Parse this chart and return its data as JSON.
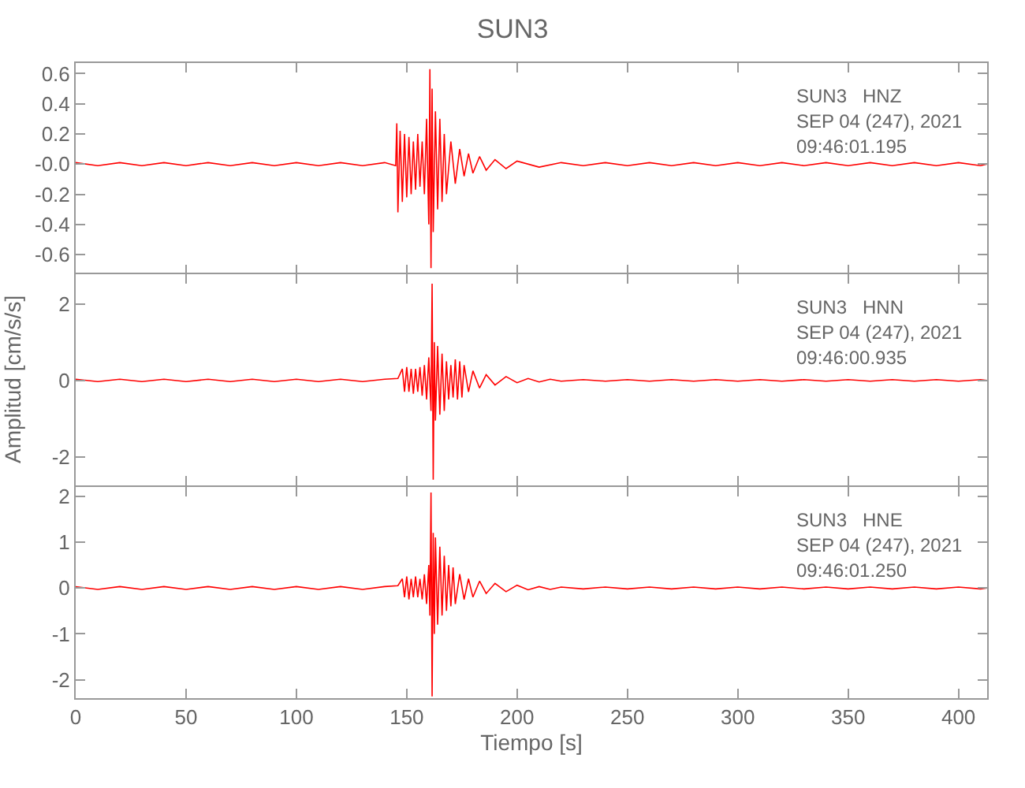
{
  "chart_data": [
    {
      "type": "line",
      "title": "SUN3",
      "color": "#ff0000",
      "annotations": [
        "SUN3   HNZ",
        "SEP 04 (247), 2021",
        "09:46:01.195"
      ],
      "xlim": [
        0,
        413
      ],
      "xticks": [
        0,
        50,
        100,
        150,
        200,
        250,
        300,
        350,
        400
      ],
      "ylim": [
        -0.73,
        0.67
      ],
      "yticks": [
        -0.6,
        -0.4,
        -0.2,
        {
          "value": 0,
          "label": "-0.0"
        },
        0.2,
        0.4,
        0.6
      ],
      "tick_labels": "y",
      "x": [
        0,
        10,
        20,
        30,
        40,
        50,
        60,
        70,
        80,
        90,
        100,
        110,
        120,
        130,
        140,
        145,
        145.5,
        146,
        147,
        148,
        149,
        150,
        151,
        152,
        153,
        154,
        155,
        156,
        157,
        158,
        159,
        160,
        160.5,
        161,
        161.5,
        162,
        163,
        164,
        165,
        166,
        167,
        168,
        170,
        172,
        174,
        176,
        178,
        180,
        183,
        186,
        190,
        195,
        200,
        210,
        220,
        230,
        240,
        250,
        260,
        270,
        280,
        290,
        300,
        310,
        320,
        330,
        340,
        350,
        360,
        370,
        380,
        390,
        400,
        410,
        413
      ],
      "values": [
        0.01,
        -0.01,
        0.01,
        -0.01,
        0.01,
        -0.01,
        0.01,
        -0.01,
        0.01,
        -0.01,
        0.01,
        -0.01,
        0.01,
        -0.01,
        0.01,
        -0.01,
        0.27,
        -0.32,
        0.22,
        -0.25,
        0.2,
        -0.22,
        0.18,
        -0.2,
        0.15,
        -0.17,
        0.2,
        -0.15,
        0.15,
        -0.2,
        0.3,
        -0.4,
        0.63,
        -0.69,
        0.5,
        -0.45,
        0.35,
        -0.3,
        0.3,
        -0.25,
        0.2,
        -0.2,
        0.15,
        -0.13,
        0.1,
        -0.08,
        0.07,
        -0.06,
        0.05,
        -0.04,
        0.03,
        -0.03,
        0.02,
        -0.02,
        0.01,
        -0.01,
        0.01,
        -0.01,
        0.01,
        -0.01,
        0.01,
        -0.01,
        0.01,
        -0.01,
        0.01,
        -0.01,
        0.01,
        -0.01,
        0.01,
        -0.01,
        0.01,
        -0.01,
        0.01,
        -0.01,
        0
      ]
    },
    {
      "type": "line",
      "ylabel": "Amplitud [cm/s/s]",
      "color": "#ff0000",
      "annotations": [
        "SUN3   HNN",
        "SEP 04 (247), 2021",
        "09:46:00.935"
      ],
      "xlim": [
        0,
        413
      ],
      "xticks": [
        0,
        50,
        100,
        150,
        200,
        250,
        300,
        350,
        400
      ],
      "ylim": [
        -2.75,
        2.78
      ],
      "yticks": [
        -2,
        0,
        2
      ],
      "tick_labels": "y",
      "x": [
        0,
        10,
        20,
        30,
        40,
        50,
        60,
        70,
        80,
        90,
        100,
        110,
        120,
        130,
        140,
        146,
        148,
        149,
        150,
        151,
        152,
        153,
        154,
        155,
        156,
        157,
        158,
        159,
        160,
        161,
        161.5,
        162,
        162.5,
        163,
        164,
        165,
        166,
        167,
        168,
        169,
        170,
        171,
        172,
        173,
        174,
        175,
        176,
        178,
        180,
        183,
        186,
        190,
        195,
        200,
        205,
        210,
        215,
        220,
        230,
        240,
        250,
        260,
        270,
        280,
        290,
        300,
        310,
        320,
        330,
        340,
        350,
        360,
        370,
        380,
        390,
        400,
        410,
        413
      ],
      "values": [
        0.03,
        -0.03,
        0.03,
        -0.03,
        0.03,
        -0.03,
        0.03,
        -0.03,
        0.03,
        -0.03,
        0.03,
        -0.03,
        0.03,
        -0.03,
        0.03,
        0.05,
        0.3,
        -0.3,
        0.35,
        -0.3,
        0.3,
        -0.35,
        0.3,
        -0.3,
        0.35,
        -0.4,
        0.4,
        -0.5,
        0.6,
        -0.8,
        2.53,
        -2.6,
        1.0,
        -1.05,
        0.9,
        -0.9,
        0.7,
        -0.8,
        0.5,
        -0.5,
        0.4,
        -0.45,
        0.55,
        -0.5,
        0.5,
        -0.45,
        0.4,
        -0.3,
        0.25,
        -0.2,
        0.15,
        -0.12,
        0.1,
        -0.06,
        0.05,
        -0.04,
        0.03,
        -0.02,
        0.02,
        -0.02,
        0.02,
        -0.02,
        0.02,
        -0.02,
        0.02,
        -0.02,
        0.02,
        -0.02,
        0.02,
        -0.02,
        0.02,
        -0.02,
        0.02,
        -0.02,
        0.02,
        -0.02,
        0.02,
        0
      ]
    },
    {
      "type": "line",
      "xlabel": "Tiempo [s]",
      "color": "#ff0000",
      "annotations": [
        "SUN3   HNE",
        "SEP 04 (247), 2021",
        "09:46:01.250"
      ],
      "xlim": [
        0,
        413
      ],
      "xticks": [
        0,
        50,
        100,
        150,
        200,
        250,
        300,
        350,
        400
      ],
      "ylim": [
        -2.4,
        2.2
      ],
      "yticks": [
        -2,
        -1,
        0,
        1,
        2
      ],
      "x": [
        0,
        10,
        20,
        30,
        40,
        50,
        60,
        70,
        80,
        90,
        100,
        110,
        120,
        130,
        140,
        146,
        148,
        149,
        150,
        151,
        152,
        153,
        154,
        155,
        156,
        157,
        158,
        159,
        160,
        160.5,
        161,
        161.5,
        162,
        162.5,
        163,
        164,
        165,
        166,
        167,
        168,
        169,
        170,
        171,
        172,
        174,
        176,
        178,
        180,
        183,
        186,
        190,
        195,
        200,
        205,
        210,
        215,
        220,
        230,
        240,
        250,
        260,
        270,
        280,
        290,
        300,
        310,
        320,
        330,
        340,
        350,
        360,
        370,
        380,
        390,
        400,
        410,
        413
      ],
      "values": [
        0.03,
        -0.03,
        0.03,
        -0.03,
        0.03,
        -0.03,
        0.03,
        -0.03,
        0.03,
        -0.03,
        0.03,
        -0.03,
        0.03,
        -0.03,
        0.03,
        0.05,
        0.2,
        -0.2,
        0.25,
        -0.25,
        0.2,
        -0.2,
        0.25,
        -0.2,
        0.2,
        -0.25,
        0.3,
        -0.35,
        0.5,
        -0.6,
        2.08,
        -2.36,
        1.2,
        -1.0,
        1.1,
        -0.8,
        0.9,
        -0.6,
        0.7,
        -0.5,
        0.5,
        -0.4,
        0.45,
        -0.35,
        0.3,
        -0.25,
        0.2,
        -0.2,
        0.15,
        -0.12,
        0.1,
        -0.08,
        0.06,
        -0.04,
        0.03,
        -0.03,
        0.02,
        -0.02,
        0.02,
        -0.02,
        0.02,
        -0.02,
        0.02,
        -0.02,
        0.02,
        -0.02,
        0.02,
        -0.02,
        0.02,
        -0.02,
        0.02,
        -0.02,
        0.02,
        -0.02,
        0.02,
        -0.02,
        0
      ]
    }
  ]
}
